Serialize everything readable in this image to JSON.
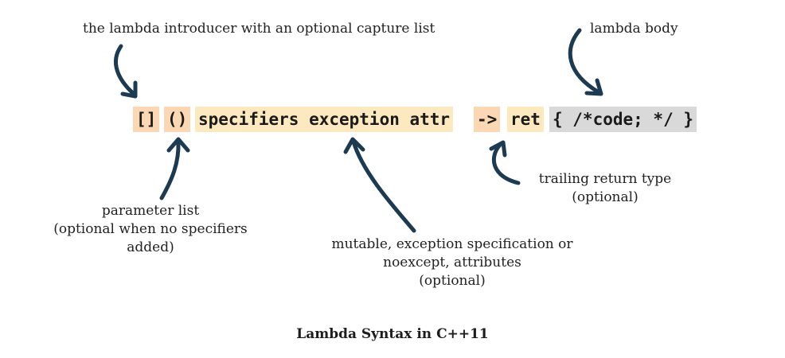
{
  "code": {
    "capture": "[]",
    "params": "()",
    "specifiers": "specifiers exception attr",
    "arrow": "->",
    "ret": "ret",
    "body": "{ /*code; */ }"
  },
  "annotations": {
    "introducer": "the lambda introducer with an optional capture list",
    "body": "lambda body",
    "params": [
      "parameter list",
      "(optional when no specifiers",
      "added)"
    ],
    "specifiers": [
      "mutable, exception specification or",
      "noexcept, attributes",
      "(optional)"
    ],
    "return_type": [
      "trailing return type",
      "(optional)"
    ]
  },
  "caption": "Lambda Syntax in C++11",
  "colors": {
    "orange_highlight": "#fbd7b3",
    "yellow_highlight": "#fde9c0",
    "gray_highlight": "#d9d9d9",
    "arrow": "#1c3a52"
  }
}
